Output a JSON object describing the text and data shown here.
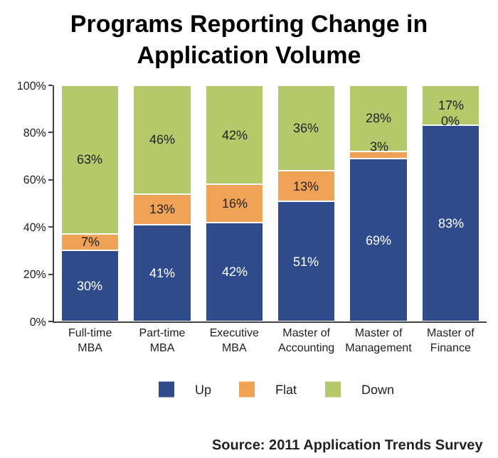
{
  "chart_data": {
    "type": "bar",
    "stacked": true,
    "title": "Programs Reporting Change in\nApplication Volume",
    "categories": [
      "Full-time\nMBA",
      "Part-time\nMBA",
      "Executive\nMBA",
      "Master of\nAccounting",
      "Master of\nManagement",
      "Master of\nFinance"
    ],
    "series": [
      {
        "name": "Up",
        "color": "#2f4b8c",
        "values": [
          30,
          41,
          42,
          51,
          69,
          83
        ],
        "value_labels": [
          "30%",
          "41%",
          "42%",
          "51%",
          "69%",
          "83%"
        ]
      },
      {
        "name": "Flat",
        "color": "#f0a256",
        "values": [
          7,
          13,
          16,
          13,
          3,
          0
        ],
        "value_labels": [
          "7%",
          "13%",
          "16%",
          "13%",
          "3%",
          "0%"
        ]
      },
      {
        "name": "Down",
        "color": "#b3c96a",
        "values": [
          63,
          46,
          42,
          36,
          28,
          17
        ],
        "value_labels": [
          "63%",
          "46%",
          "42%",
          "36%",
          "28%",
          "17%"
        ]
      }
    ],
    "ylim": [
      0,
      100
    ],
    "yticks": [
      {
        "value": 0,
        "label": "0%"
      },
      {
        "value": 20,
        "label": "20%"
      },
      {
        "value": 40,
        "label": "40%"
      },
      {
        "value": 60,
        "label": "60%"
      },
      {
        "value": 80,
        "label": "80%"
      },
      {
        "value": 100,
        "label": "100%"
      }
    ],
    "legend": "bottom",
    "annotations": [
      "Source: 2011 Application Trends Survey"
    ]
  }
}
